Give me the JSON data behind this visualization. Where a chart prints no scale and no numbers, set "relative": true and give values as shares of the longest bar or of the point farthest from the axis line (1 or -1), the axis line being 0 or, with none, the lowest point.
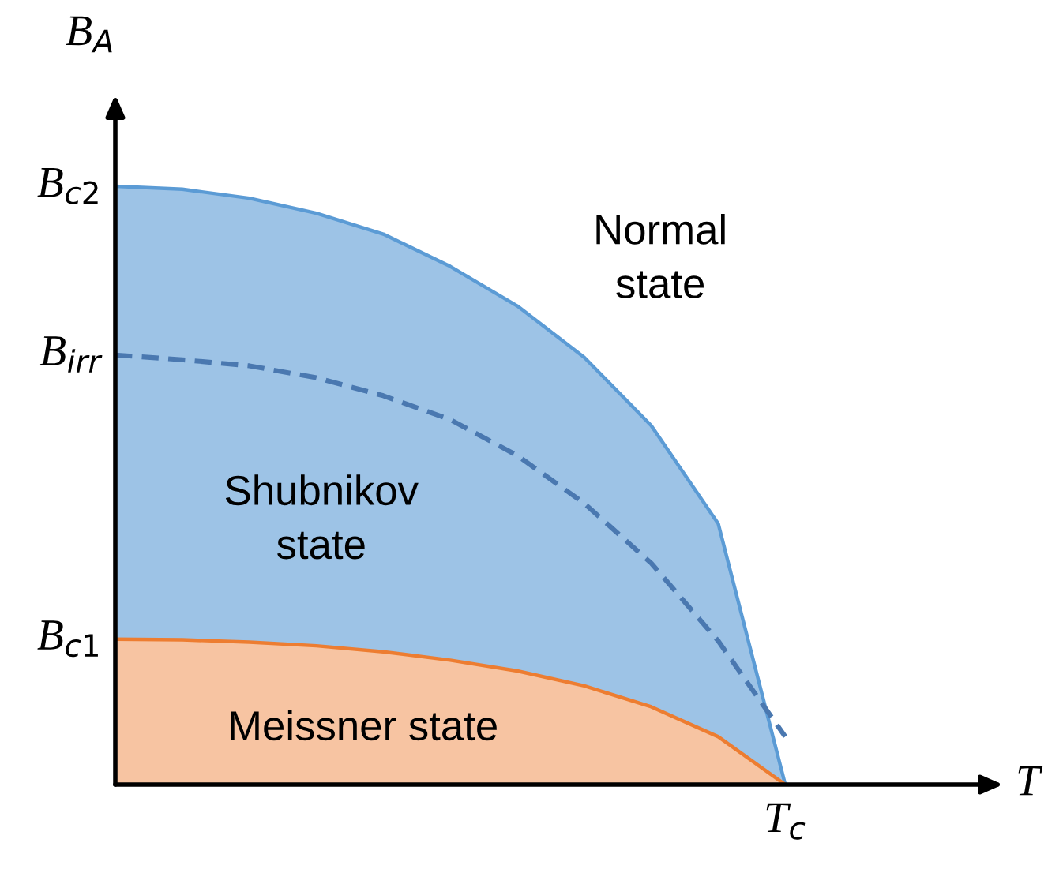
{
  "chart_data": {
    "type": "area",
    "xlabel": "T",
    "ylabel": "B$_{A}$",
    "categories": [
      null,
      null,
      null,
      null,
      null,
      null,
      null,
      null,
      null,
      null,
      null
    ],
    "relative": true,
    "series": [
      {
        "color": "#5b9bd5",
        "values": [
          1,
          0.995,
          0.98,
          0.955,
          0.92,
          0.866,
          0.8,
          0.714,
          0.6,
          0.436,
          0
        ]
      },
      {
        "type": "line",
        "color": "#4a78b0",
        "line_style": "dashed",
        "values": [
          0.718,
          0.71,
          0.7,
          0.68,
          0.65,
          0.61,
          0.55,
          0.47,
          0.37,
          0.24,
          0.08
        ]
      },
      {
        "color": "#ed7d31",
        "values": [
          0.243,
          0.242,
          0.238,
          0.232,
          0.222,
          0.208,
          0.19,
          0.165,
          0.13,
          0.08,
          0
        ]
      }
    ],
    "annotations": [
      "B$_{c2}$",
      "B$_{irr}$",
      "B$_{c1}$",
      "Normal\nstate",
      "Shubnikov\nstate",
      "Meissner state",
      "T$_{c}$"
    ]
  }
}
